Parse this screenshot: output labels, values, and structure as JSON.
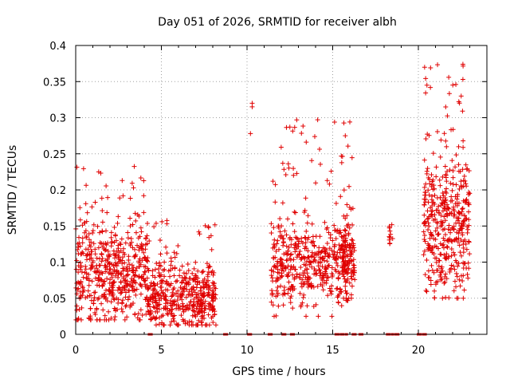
{
  "chart_data": {
    "type": "scatter",
    "title": "Day 051 of 2026, SRMTID for receiver albh",
    "xlabel": "GPS time / hours",
    "ylabel": "SRMTID / TECUs",
    "xlim": [
      0,
      24
    ],
    "ylim": [
      0,
      0.4
    ],
    "grid": true,
    "marker": "+",
    "color": "#e00000",
    "x_ticks": [
      0,
      5,
      10,
      15,
      20
    ],
    "x_tick_labels": [
      "0",
      "5",
      "10",
      "15",
      "20"
    ],
    "y_ticks": [
      0,
      0.05,
      0.1,
      0.15,
      0.2,
      0.25,
      0.3,
      0.35,
      0.4
    ],
    "y_tick_labels": [
      "0",
      "0.05",
      "0.1",
      "0.15",
      "0.2",
      "0.25",
      "0.3",
      "0.35",
      "0.4"
    ],
    "clusters": [
      {
        "x_start": 0.0,
        "x_end": 4.2,
        "y_center": 0.085,
        "y_spread": 0.045,
        "y_min": 0.02,
        "y_max": 0.24,
        "count": 520
      },
      {
        "x_start": 4.2,
        "x_end": 8.2,
        "y_center": 0.05,
        "y_spread": 0.03,
        "y_min": 0.013,
        "y_max": 0.165,
        "count": 460
      },
      {
        "x_start": 11.4,
        "x_end": 15.9,
        "y_center": 0.1,
        "y_spread": 0.04,
        "y_min": 0.025,
        "y_max": 0.3,
        "count": 480
      },
      {
        "x_start": 15.5,
        "x_end": 16.3,
        "y_center": 0.1,
        "y_spread": 0.04,
        "y_min": 0.05,
        "y_max": 0.295,
        "count": 110
      },
      {
        "x_start": 18.3,
        "x_end": 18.5,
        "y_center": 0.14,
        "y_spread": 0.01,
        "y_min": 0.125,
        "y_max": 0.157,
        "count": 12
      },
      {
        "x_start": 20.3,
        "x_end": 23.0,
        "y_center": 0.15,
        "y_spread": 0.065,
        "y_min": 0.05,
        "y_max": 0.375,
        "count": 420
      }
    ],
    "outliers": [
      {
        "x": 10.2,
        "y": 0.278
      },
      {
        "x": 10.3,
        "y": 0.315
      },
      {
        "x": 10.3,
        "y": 0.32
      },
      {
        "x": 12.5,
        "y": 0.287
      },
      {
        "x": 12.9,
        "y": 0.297
      },
      {
        "x": 16.0,
        "y": 0.294
      },
      {
        "x": 20.5,
        "y": 0.345
      },
      {
        "x": 22.6,
        "y": 0.374
      },
      {
        "x": 22.6,
        "y": 0.353
      },
      {
        "x": 22.5,
        "y": 0.33
      }
    ],
    "zero_values_at_x": [
      4.3,
      4.4,
      8.7,
      8.8,
      10.1,
      10.2,
      11.3,
      11.4,
      12.1,
      12.2,
      12.6,
      12.7,
      15.2,
      15.3,
      15.5,
      15.6,
      15.8,
      16.2,
      16.3,
      16.6,
      16.7,
      18.2,
      18.3,
      18.5,
      18.7,
      18.8,
      20.0,
      20.1,
      20.3,
      20.4
    ]
  }
}
